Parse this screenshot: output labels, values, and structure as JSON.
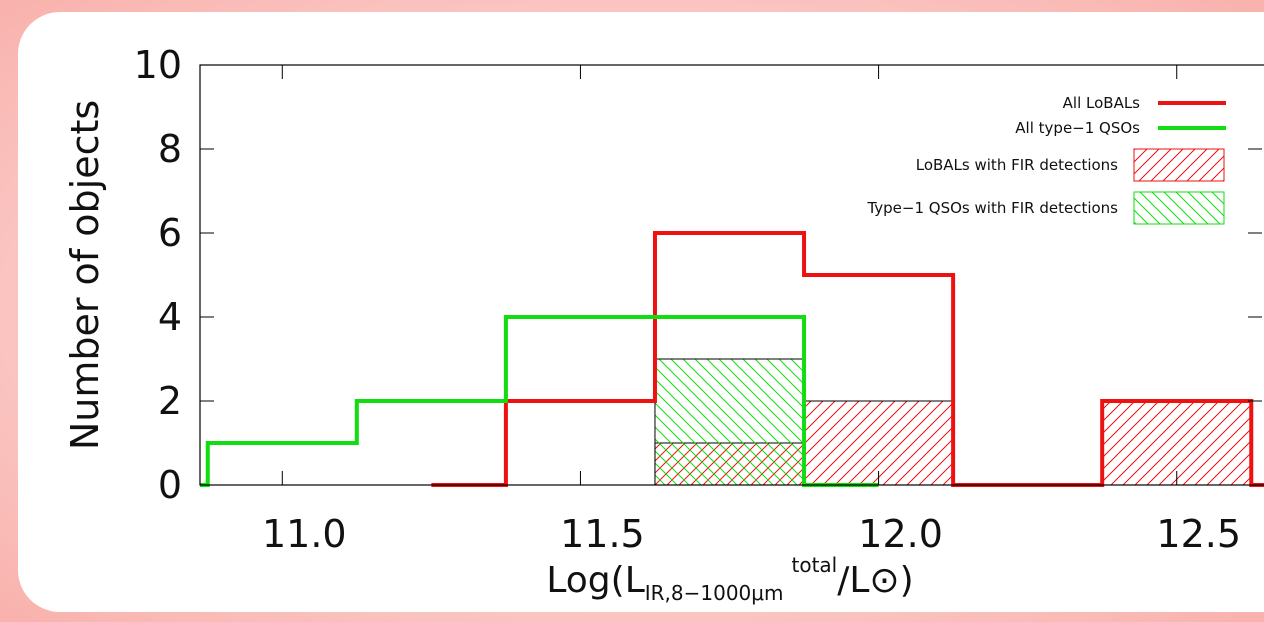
{
  "chart_data": {
    "type": "step",
    "ylabel": "Number of objects",
    "xlabel": {
      "main": "Log(L",
      "sub": "IR,8−1000μm",
      "sup": "total",
      "end": "/L⊙)"
    },
    "xlim": [
      10.862,
      12.643
    ],
    "ylim": [
      0,
      10
    ],
    "xticks": [
      {
        "value": 11,
        "label": "11.0"
      },
      11.5,
      {
        "value": 12,
        "label": "12.0"
      },
      12.5
    ],
    "yticks": [
      0,
      2,
      4,
      6,
      8,
      10
    ],
    "legend": "top-right",
    "series": [
      {
        "name": "All LoBALs",
        "color": "#ee1111",
        "style": "line",
        "x": [
          11.25,
          11.5,
          11.75,
          12.0,
          12.25,
          12.5,
          12.75
        ],
        "values": [
          0,
          2,
          6,
          5,
          0,
          2,
          0
        ]
      },
      {
        "name": "All type−1 QSOs",
        "color": "#11dd11",
        "style": "line",
        "x": [
          10.75,
          11.0,
          11.25,
          11.5,
          11.75,
          12.0
        ],
        "values": [
          0,
          1,
          2,
          4,
          4,
          0
        ]
      },
      {
        "name": "LoBALs with FIR detections",
        "color": "#ee1111",
        "style": "hatch",
        "hatch": "/",
        "bins": [
          11.625,
          11.875,
          12.125,
          12.375,
          12.625
        ],
        "values": [
          1,
          2,
          0,
          2
        ]
      },
      {
        "name": "Type−1 QSOs with FIR detections",
        "color": "#11dd11",
        "style": "hatch",
        "hatch": "\\",
        "bins": [
          11.625,
          11.875
        ],
        "values": [
          3
        ]
      }
    ]
  }
}
